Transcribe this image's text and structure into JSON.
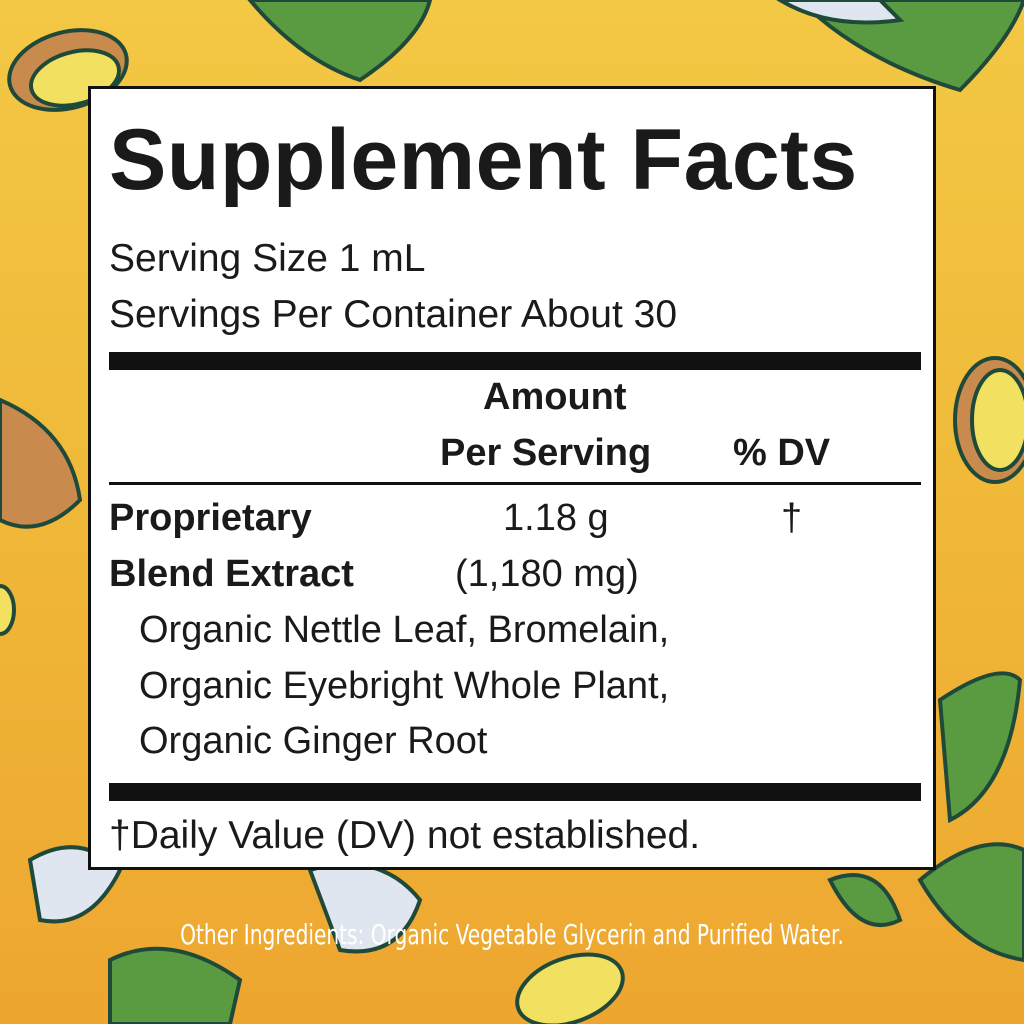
{
  "label": {
    "title": "Supplement Facts",
    "serving_size": "Serving Size 1 mL",
    "servings_per_container": "Servings Per Container About 30",
    "header": {
      "amount_line1": "Amount",
      "amount_line2": "Per Serving",
      "dv": "% DV"
    },
    "blend": {
      "name_line1": "Proprietary",
      "name_line2": "Blend Extract",
      "amount": "1.18 g",
      "amount_mg": "(1,180 mg)",
      "dv": "†",
      "ingredients": [
        "Organic Nettle Leaf, Bromelain,",
        "Organic Eyebright Whole Plant,",
        "Organic Ginger Root"
      ]
    },
    "footnote": "†Daily Value (DV) not established."
  },
  "other_ingredients": "Other Ingredients: Organic Vegetable Glycerin and Purified Water.",
  "colors": {
    "background": "#f0b838",
    "leaf": "#4f8a3a",
    "seed": "#f2e060",
    "outline": "#1f4a3a"
  }
}
